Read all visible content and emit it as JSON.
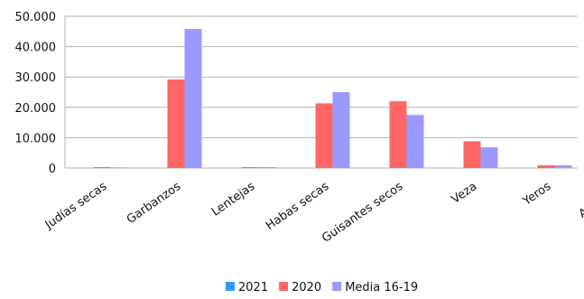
{
  "chart_data": {
    "type": "bar",
    "categories": [
      "Judías secas",
      "Garbanzos",
      "Lentejas",
      "Habas secas",
      "Guisantes secos",
      "Veza",
      "Yeros",
      "Altramuz"
    ],
    "series": [
      {
        "name": "2021",
        "color": "#3399ff",
        "values": [
          0,
          0,
          0,
          0,
          0,
          0,
          0,
          0
        ]
      },
      {
        "name": "2020",
        "color": "#ff6666",
        "values": [
          300,
          29200,
          300,
          21300,
          22000,
          8800,
          900,
          0
        ]
      },
      {
        "name": "Media  16-19",
        "color": "#9999ff",
        "values": [
          200,
          45800,
          300,
          25000,
          17500,
          6800,
          900,
          0
        ]
      }
    ],
    "yticks": [
      "0",
      "10.000",
      "20.000",
      "30.000",
      "40.000",
      "50.000"
    ],
    "ytick_values": [
      0,
      10000,
      20000,
      30000,
      40000,
      50000
    ],
    "ylim": [
      0,
      50000
    ],
    "grid": true,
    "legend_position": "bottom",
    "title": "",
    "xlabel": "",
    "ylabel": ""
  }
}
